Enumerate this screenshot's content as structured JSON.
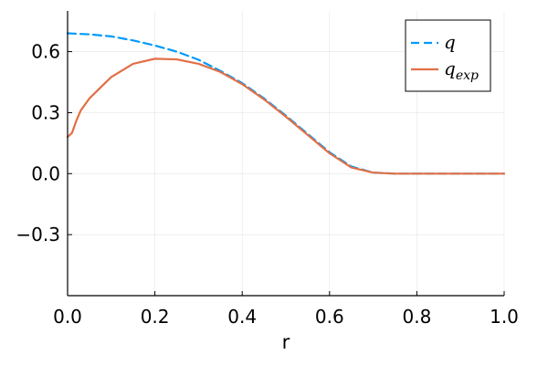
{
  "chart_data": {
    "type": "line",
    "title": "",
    "xlabel": "r",
    "ylabel": "",
    "xlim": [
      0.0,
      1.0
    ],
    "ylim": [
      -0.6,
      0.8
    ],
    "xticks": [
      0.0,
      0.2,
      0.4,
      0.6,
      0.8,
      1.0
    ],
    "xtick_labels": [
      "0.0",
      "0.2",
      "0.4",
      "0.6",
      "0.8",
      "1.0"
    ],
    "yticks": [
      -0.3,
      0.0,
      0.3,
      0.6
    ],
    "ytick_labels": [
      "−0.3",
      "0.0",
      "0.3",
      "0.6"
    ],
    "grid": true,
    "legend_position": "top-right",
    "series": [
      {
        "name": "q",
        "legend_main": "q",
        "legend_sub": "",
        "style": "dashed",
        "color": "#009AFA",
        "x": [
          0.0,
          0.05,
          0.1,
          0.15,
          0.2,
          0.25,
          0.3,
          0.35,
          0.4,
          0.45,
          0.5,
          0.55,
          0.6,
          0.65,
          0.7,
          0.75,
          0.8,
          0.85,
          0.9,
          0.95,
          1.0
        ],
        "y": [
          0.69,
          0.685,
          0.675,
          0.655,
          0.63,
          0.6,
          0.56,
          0.505,
          0.445,
          0.37,
          0.285,
          0.195,
          0.105,
          0.035,
          0.005,
          0.0,
          0.0,
          0.0,
          0.0,
          0.0,
          0.0
        ]
      },
      {
        "name": "q_exp",
        "legend_main": "q",
        "legend_sub": "exp",
        "style": "solid",
        "color": "#E26F46",
        "x": [
          0.0,
          0.01,
          0.02,
          0.03,
          0.05,
          0.1,
          0.15,
          0.2,
          0.25,
          0.3,
          0.35,
          0.4,
          0.45,
          0.5,
          0.55,
          0.6,
          0.65,
          0.7,
          0.75,
          0.8,
          0.85,
          0.9,
          0.95,
          1.0
        ],
        "y": [
          0.18,
          0.2,
          0.26,
          0.31,
          0.37,
          0.475,
          0.54,
          0.565,
          0.562,
          0.54,
          0.5,
          0.44,
          0.365,
          0.28,
          0.19,
          0.1,
          0.03,
          0.005,
          0.0,
          0.0,
          0.0,
          0.0,
          0.0,
          0.0
        ]
      }
    ]
  }
}
